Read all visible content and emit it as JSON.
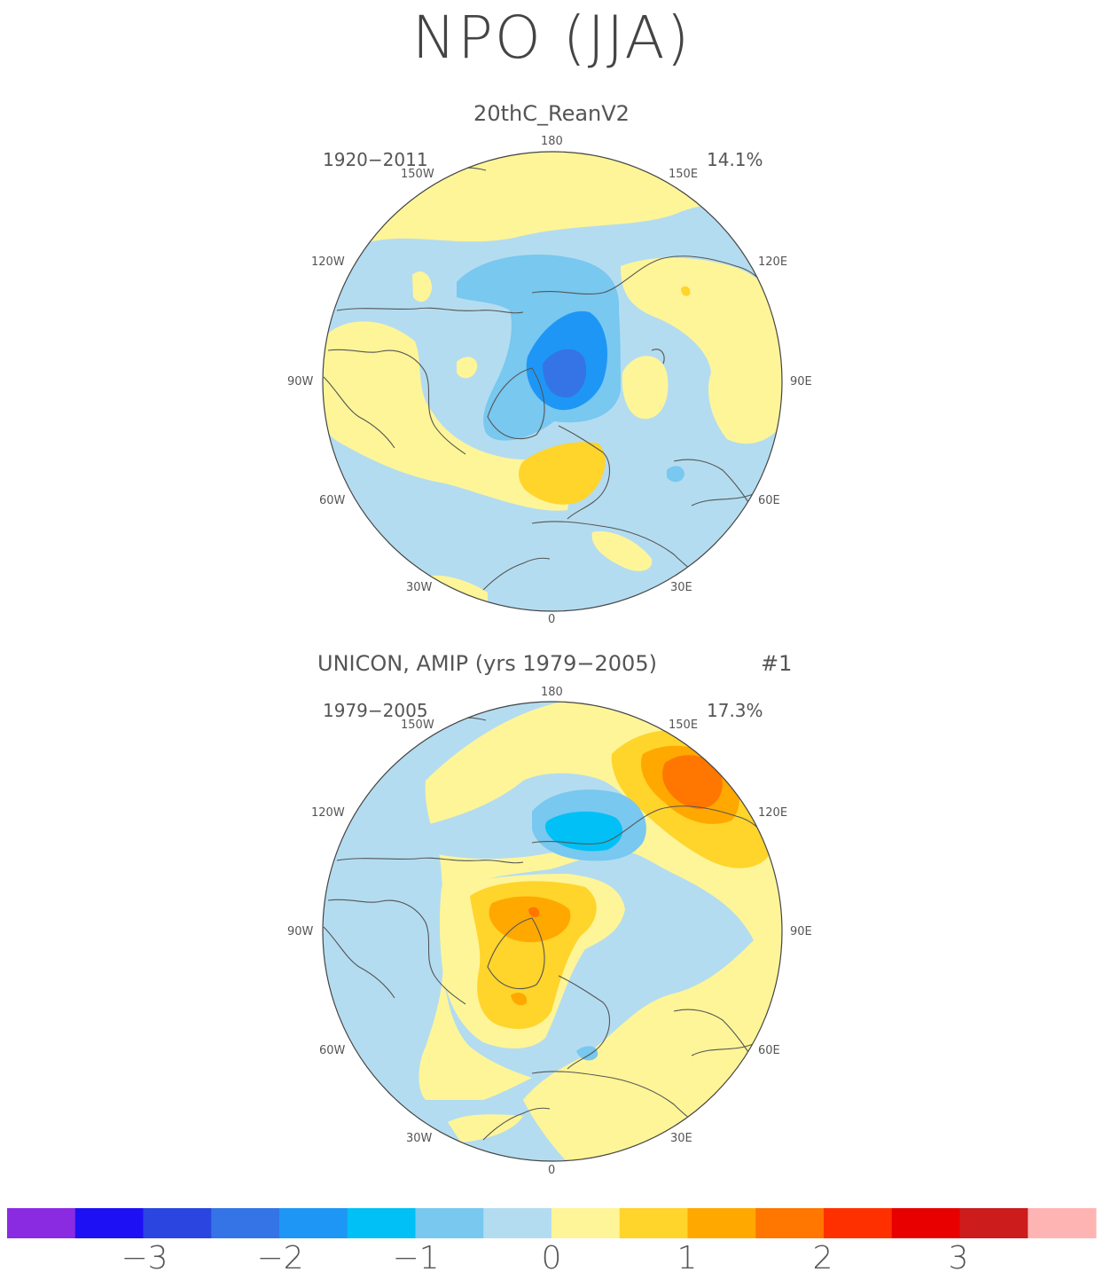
{
  "title": "NPO (JJA)",
  "panels": [
    {
      "title": "20thC_ReanV2",
      "period": "1920−2011",
      "variance": "14.1%"
    },
    {
      "title": "UNICON, AMIP (yrs 1979−2005)",
      "member": "#1",
      "period": "1979−2005",
      "variance": "17.3%"
    }
  ],
  "longitude_labels": [
    "180",
    "150E",
    "120E",
    "90E",
    "60E",
    "30E",
    "0",
    "30W",
    "60W",
    "90W",
    "120W",
    "150W"
  ],
  "colorbar": {
    "colors": [
      "#8a2be2",
      "#1e10f5",
      "#2b45e0",
      "#3574e6",
      "#1e96f5",
      "#00c0f5",
      "#78c8f0",
      "#b4dcf0",
      "#fef598",
      "#ffd42b",
      "#ffa800",
      "#ff7600",
      "#ff3000",
      "#e80000",
      "#cc1c1c",
      "#ffb4b4"
    ],
    "tick_labels": [
      "−3",
      "−2",
      "−1",
      "0",
      "1",
      "2",
      "3"
    ],
    "levels": [
      -3.5,
      -3,
      -2.5,
      -2,
      -1.5,
      -1,
      -0.5,
      0,
      0.5,
      1,
      1.5,
      2,
      2.5,
      3,
      3.5
    ]
  },
  "chart_data": [
    {
      "type": "heatmap",
      "title": "20thC_ReanV2",
      "period": "1920−2011",
      "variance_explained": "14.1%",
      "projection": "north polar stereographic",
      "anomaly_centers": [
        {
          "lon": 90,
          "lat": 78,
          "value": -2.5
        },
        {
          "lon": 160,
          "lat": 72,
          "value": -1.0
        },
        {
          "lon": 10,
          "lat": 60,
          "value": 1.0
        },
        {
          "lon": -90,
          "lat": 45,
          "value": 0.5
        }
      ]
    },
    {
      "type": "heatmap",
      "title": "UNICON, AMIP (yrs 1979−2005)",
      "period": "1979−2005",
      "variance_explained": "17.3%",
      "projection": "north polar stereographic",
      "anomaly_centers": [
        {
          "lon": 140,
          "lat": 45,
          "value": 2.0
        },
        {
          "lon": -40,
          "lat": 80,
          "value": 1.5
        },
        {
          "lon": 150,
          "lat": 75,
          "value": -1.5
        },
        {
          "lon": -20,
          "lat": 65,
          "value": 1.0
        }
      ]
    }
  ]
}
